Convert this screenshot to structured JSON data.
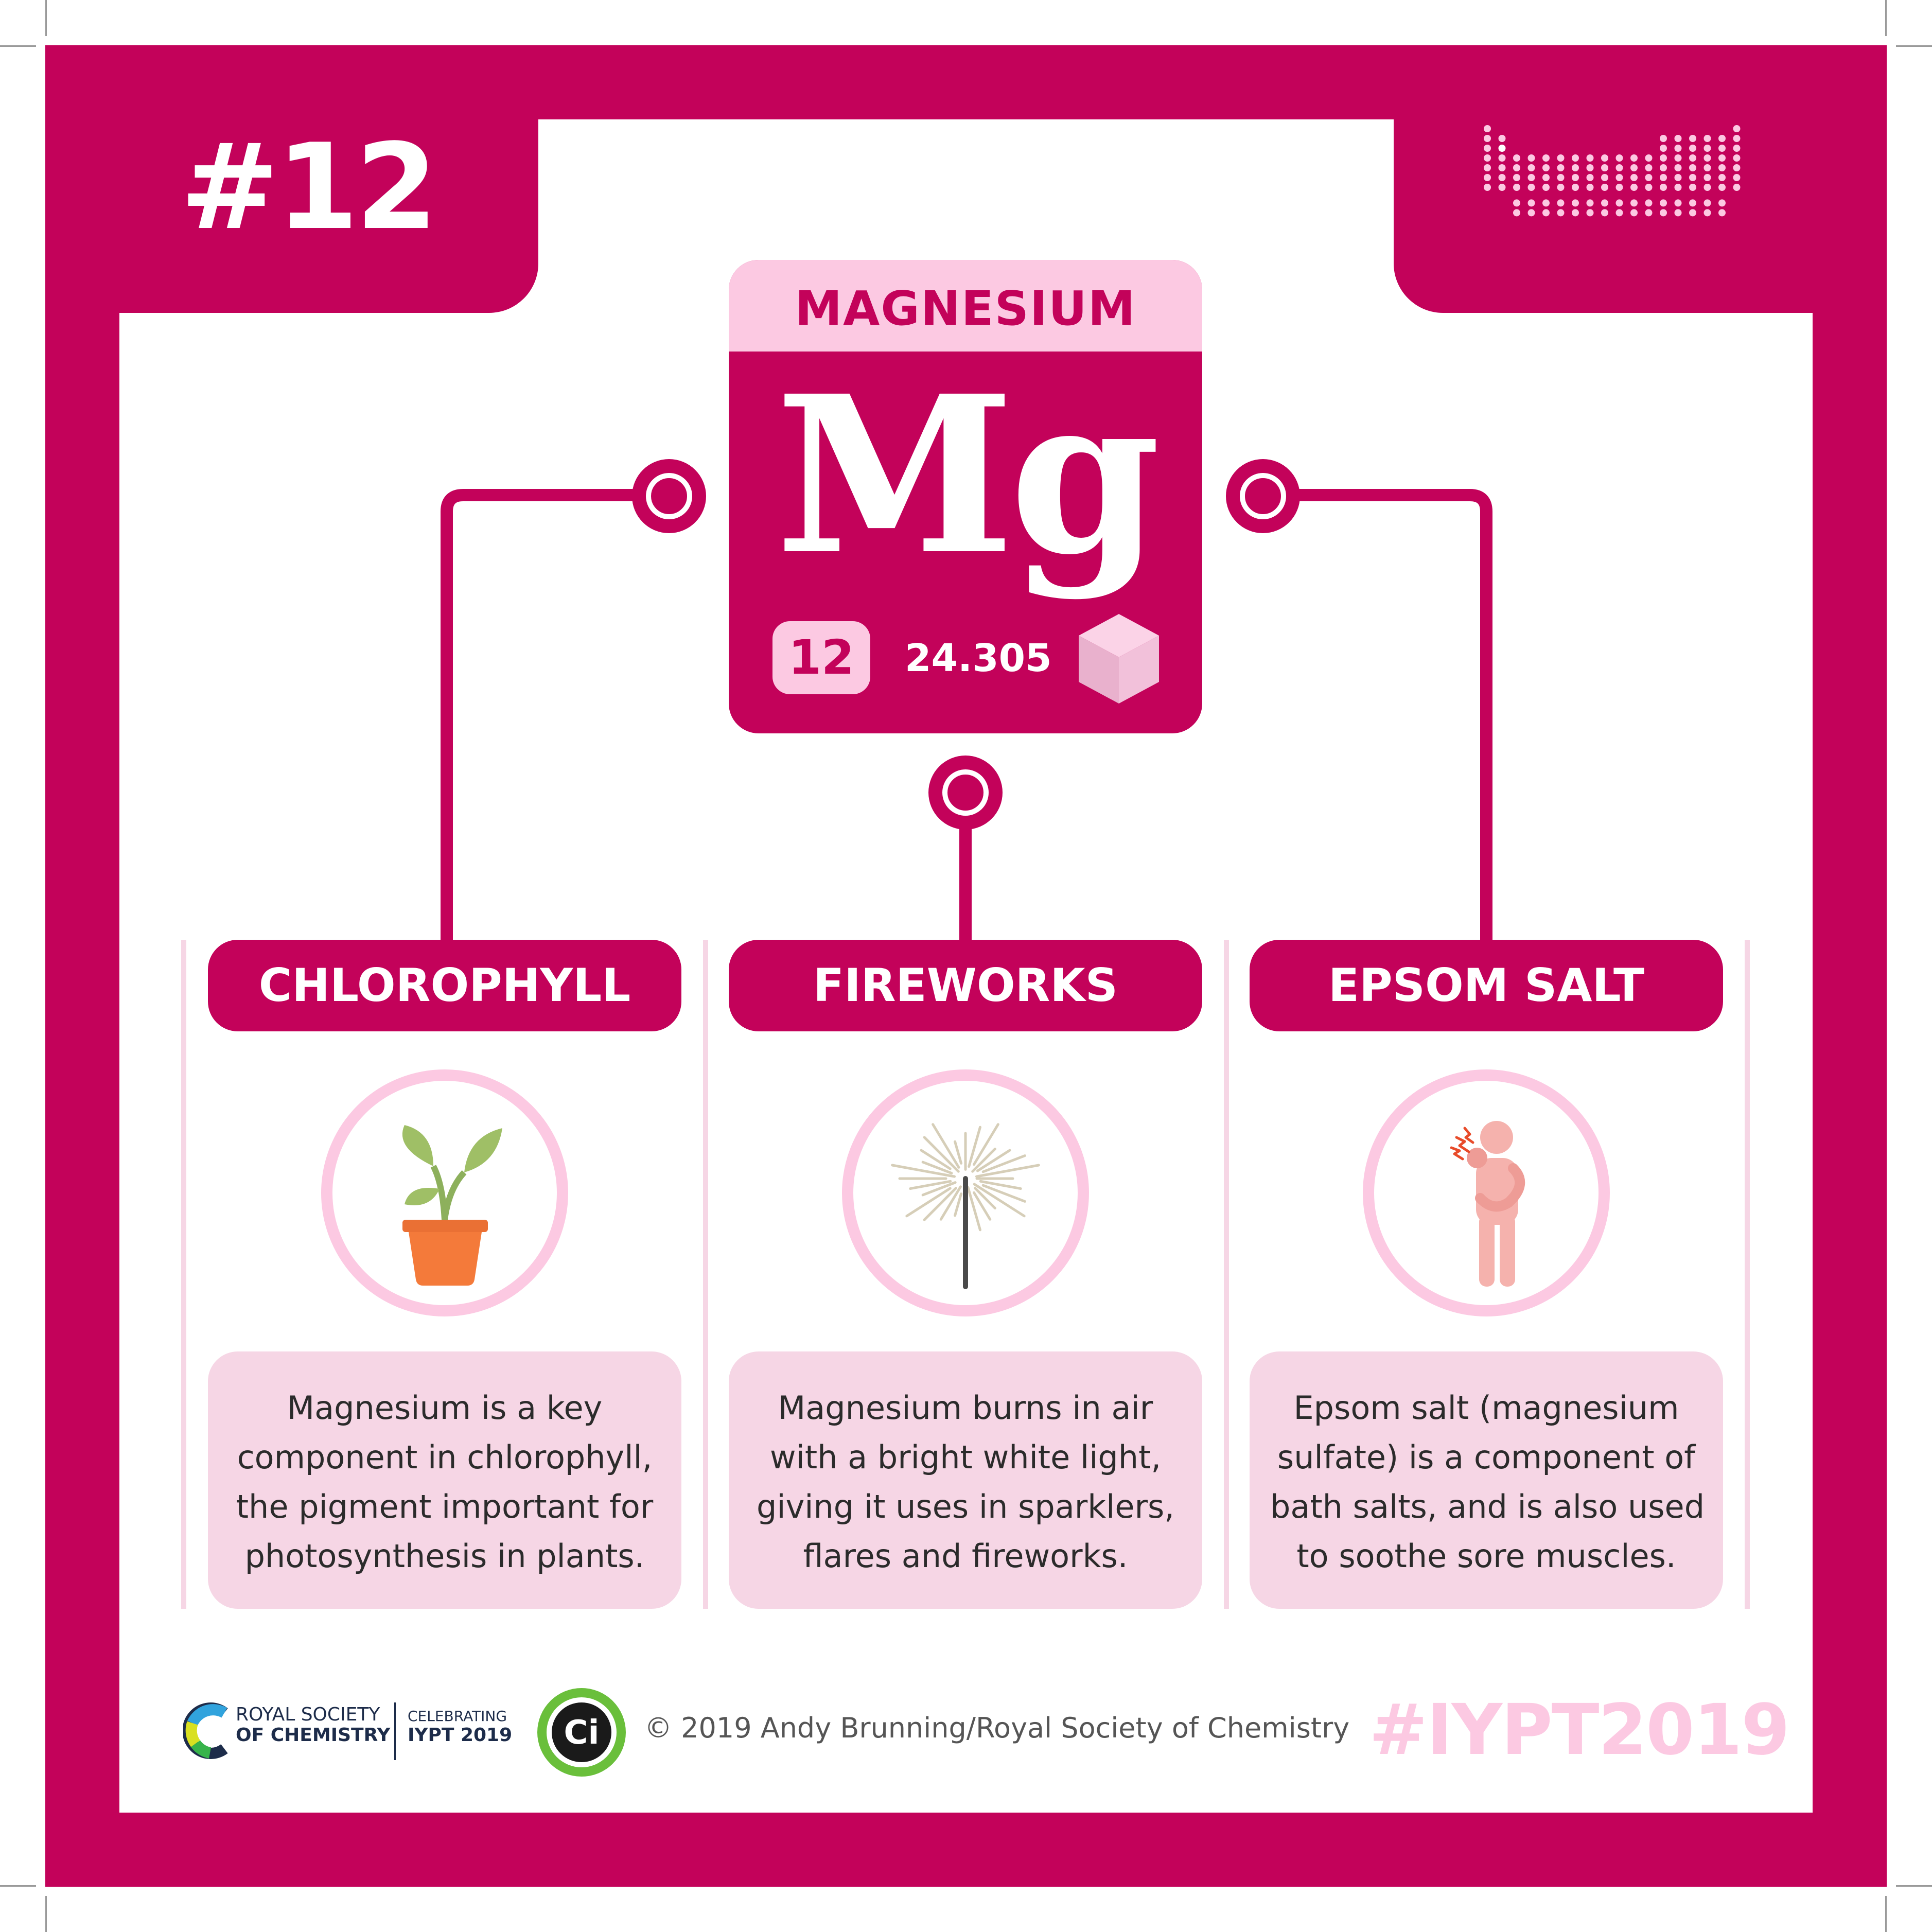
{
  "number_label": "#12",
  "element": {
    "name": "MAGNESIUM",
    "symbol": "Mg",
    "atomic_number": "12",
    "atomic_mass": "24.305"
  },
  "columns": [
    {
      "title": "CHLOROPHYLL",
      "icon": "plant-pot-icon",
      "text_lines": [
        "Magnesium is a key",
        "component in chlorophyll,",
        "the pigment important for",
        "photosynthesis in plants."
      ]
    },
    {
      "title": "FIREWORKS",
      "icon": "sparkler-icon",
      "text_lines": [
        "Magnesium burns in air",
        "with a bright white light,",
        "giving it uses in sparklers,",
        "flares and fireworks."
      ]
    },
    {
      "title": "EPSOM SALT",
      "icon": "sore-muscle-person-icon",
      "text_lines": [
        "Epsom salt (magnesium",
        "sulfate) is a component of",
        "bath salts, and is also used",
        "to soothe sore muscles."
      ]
    }
  ],
  "footer": {
    "rsc_line1": "ROYAL SOCIETY",
    "rsc_line2": "OF CHEMISTRY",
    "celebrating_line1": "CELEBRATING",
    "celebrating_line2": "IYPT 2019",
    "ci_logo_text": "Ci",
    "copyright": "© 2019 Andy Brunning/Royal Society of Chemistry",
    "hashtag": "#IYPT2019"
  },
  "colors": {
    "primary": "#c3025a",
    "light_pink": "#fcc9e2",
    "pale_pink": "#f6d6e5",
    "white": "#ffffff"
  }
}
